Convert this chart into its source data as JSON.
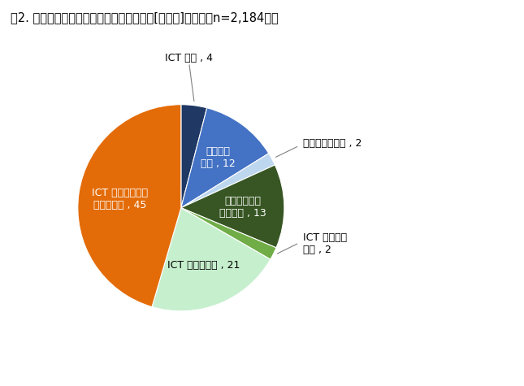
{
  "title": "図2. 大雨や台風などの災害情報の入手手段[分野別]（高齢者n=2,184）％",
  "slices": [
    {
      "label": "ICT のみ , 4",
      "value": 4,
      "color": "#1f3864",
      "text_color": "black",
      "inside": false
    },
    {
      "label": "メディア\nのみ , 12",
      "value": 12,
      "color": "#4472c4",
      "text_color": "white",
      "inside": true
    },
    {
      "label": "公的・人伝のみ , 2",
      "value": 2,
      "color": "#bdd7ee",
      "text_color": "black",
      "inside": false
    },
    {
      "label": "メディアと公\n的・人伝 , 13",
      "value": 13,
      "color": "#375623",
      "text_color": "white",
      "inside": true
    },
    {
      "label": "ICT と公的・\n人伝 , 2",
      "value": 2,
      "color": "#70ad47",
      "text_color": "black",
      "inside": false
    },
    {
      "label": "ICT とメディア , 21",
      "value": 21,
      "color": "#c6efce",
      "text_color": "black",
      "inside": true
    },
    {
      "label": "ICT とメディアと\n公的・人伝 , 45",
      "value": 45,
      "color": "#e36c09",
      "text_color": "white",
      "inside": true
    }
  ],
  "title_fontsize": 10.5,
  "label_fontsize": 9,
  "background_color": "#ffffff"
}
